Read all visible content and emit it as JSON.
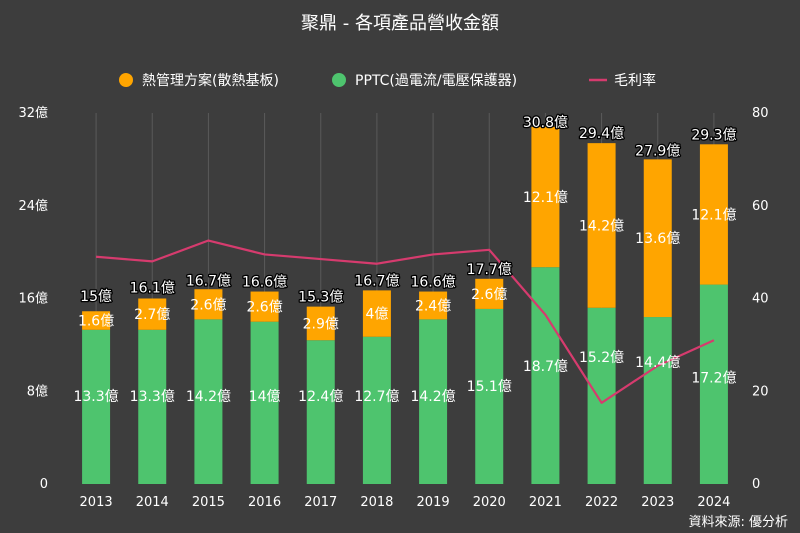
{
  "chart_data": {
    "type": "bar",
    "stacked": true,
    "title": "聚鼎 - 各項產品營收金額",
    "source": "資料來源: 優分析",
    "categories": [
      "2013",
      "2014",
      "2015",
      "2016",
      "2017",
      "2018",
      "2019",
      "2020",
      "2021",
      "2022",
      "2023",
      "2024"
    ],
    "left_axis": {
      "min": 0,
      "max": 32,
      "ticks": [
        0,
        8,
        16,
        24,
        32
      ],
      "tick_labels": [
        "0",
        "8億",
        "16億",
        "24億",
        "32億"
      ]
    },
    "right_axis": {
      "min": 0,
      "max": 80,
      "ticks": [
        0,
        20,
        40,
        60,
        80
      ],
      "tick_labels": [
        "0",
        "20",
        "40",
        "60",
        "80"
      ]
    },
    "series": [
      {
        "name": "PPTC(過電流/電壓保護器)",
        "color": "#4ec46e",
        "axis": "left",
        "values": [
          13.3,
          13.3,
          14.2,
          14,
          12.4,
          12.7,
          14.2,
          15.1,
          18.7,
          15.2,
          14.4,
          17.2
        ],
        "labels": [
          "13.3億",
          "13.3億",
          "14.2億",
          "14億",
          "12.4億",
          "12.7億",
          "14.2億",
          "15.1億",
          "18.7億",
          "15.2億",
          "14.4億",
          "17.2億"
        ]
      },
      {
        "name": "熱管理方案(散熱基板)",
        "color": "#ffa500",
        "axis": "left",
        "values": [
          1.6,
          2.7,
          2.6,
          2.6,
          2.9,
          4,
          2.4,
          2.6,
          12.1,
          14.2,
          13.6,
          12.1
        ],
        "labels": [
          "1.6億",
          "2.7億",
          "2.6億",
          "2.6億",
          "2.9億",
          "4億",
          "2.4億",
          "2.6億",
          "12.1億",
          "14.2億",
          "13.6億",
          "12.1億"
        ]
      },
      {
        "name": "毛利率",
        "type": "line",
        "color": "#d63b6e",
        "axis": "right",
        "values": [
          49,
          48,
          52.5,
          49.5,
          48.5,
          47.5,
          49.5,
          50.5,
          36.5,
          17.5,
          25.5,
          31
        ]
      }
    ],
    "totals": {
      "values": [
        15,
        16.1,
        16.7,
        16.6,
        15.3,
        16.7,
        16.6,
        17.7,
        30.8,
        29.4,
        27.9,
        29.3
      ],
      "labels": [
        "15億",
        "16.1億",
        "16.7億",
        "16.6億",
        "15.3億",
        "16.7億",
        "16.6億",
        "17.7億",
        "30.8億",
        "29.4億",
        "27.9億",
        "29.3億"
      ]
    },
    "legend_order": [
      "熱管理方案(散熱基板)",
      "PPTC(過電流/電壓保護器)",
      "毛利率"
    ],
    "legend_position": "top"
  }
}
